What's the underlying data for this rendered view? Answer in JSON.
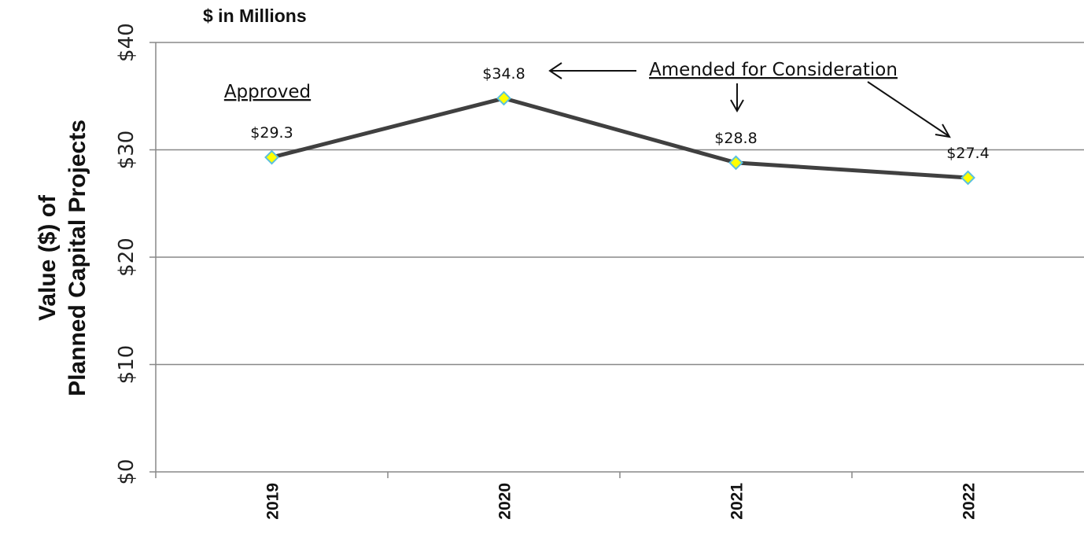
{
  "chart_data": {
    "type": "line",
    "units_label": "$ in Millions",
    "ylabel": [
      "Value ($) of",
      "Planned Capital Projects"
    ],
    "xlabel": "",
    "categories": [
      "2019",
      "2020",
      "2021",
      "2022"
    ],
    "series": [
      {
        "values": [
          29.3,
          34.8,
          28.8,
          27.4
        ],
        "data_labels": [
          "$29.3",
          "$34.8",
          "$28.8",
          "$27.4"
        ],
        "line_color": "#404040",
        "marker": "diamond",
        "marker_fill": "#ffff00",
        "marker_edge": "#5bc0de"
      }
    ],
    "ylim": [
      0,
      40
    ],
    "yticks": [
      0,
      10,
      20,
      30,
      40
    ],
    "ytick_labels": [
      "$0",
      "$10",
      "$20",
      "$30",
      "$40"
    ],
    "grid": true,
    "gridline_color": "#888888",
    "annotations": {
      "approved": "Approved",
      "amended": "Amended for Consideration"
    }
  }
}
